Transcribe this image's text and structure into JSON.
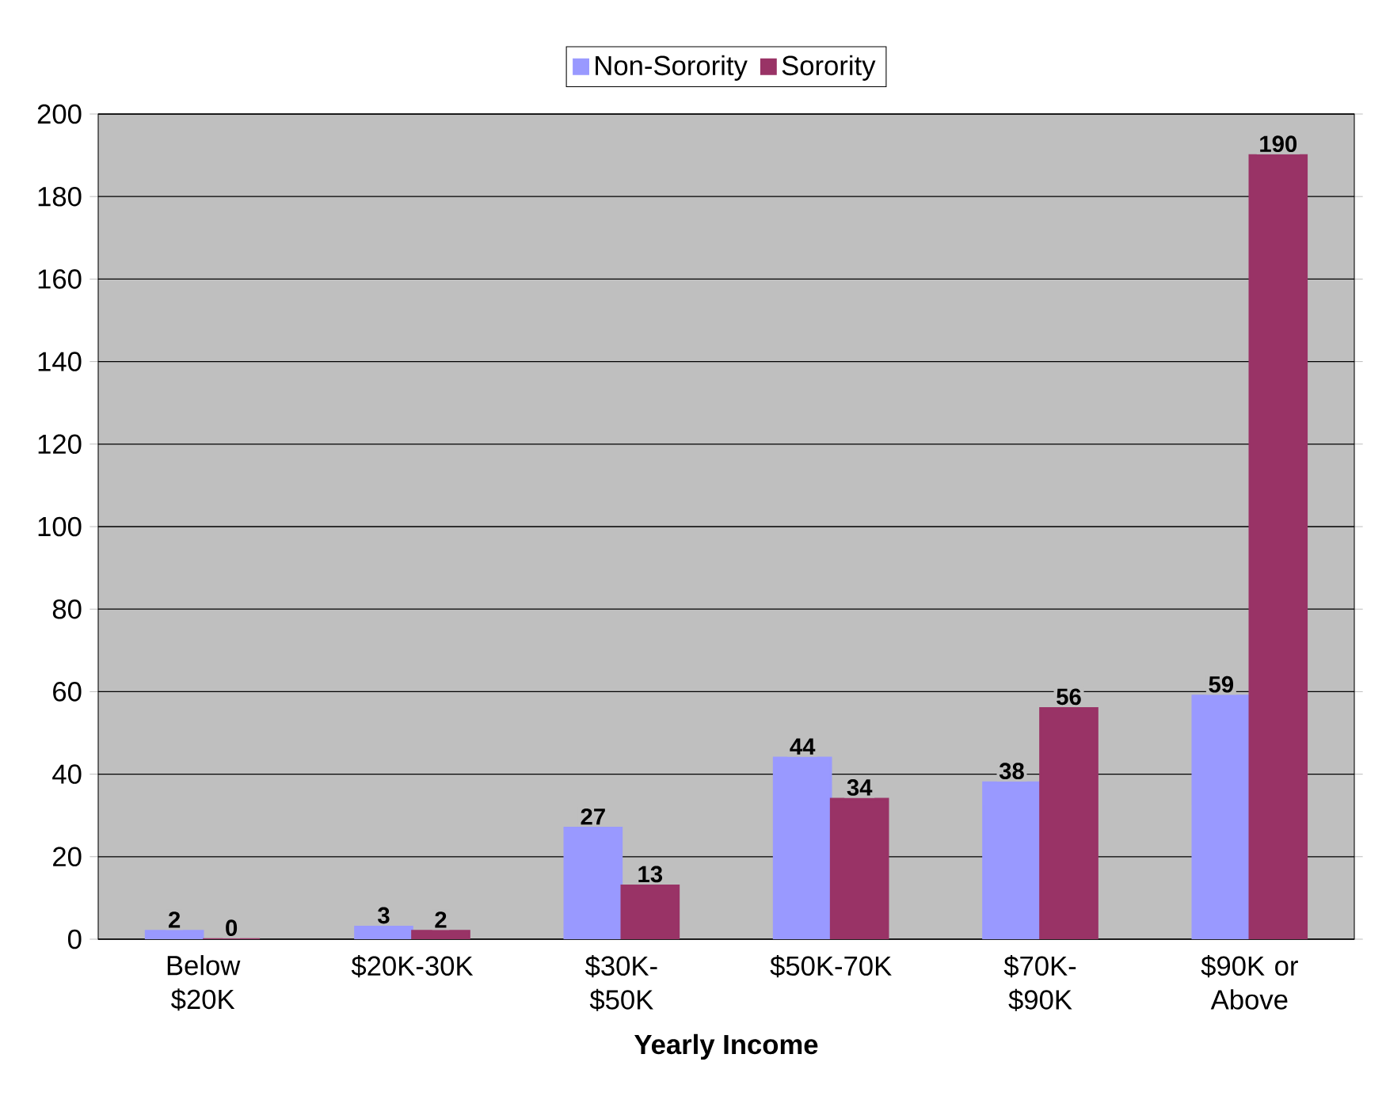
{
  "chart_data": {
    "type": "bar",
    "xlabel": "Yearly Income",
    "categories": [
      "Below $20K",
      "$20K-30K",
      "$30K-$50K",
      "$50K-70K",
      "$70K-$90K",
      "$90K or Above"
    ],
    "series": [
      {
        "name": "Non-Sorority",
        "color": "#9999ff",
        "values": [
          2,
          3,
          27,
          44,
          38,
          59
        ]
      },
      {
        "name": "Sorority",
        "color": "#993366",
        "values": [
          0,
          2,
          13,
          34,
          56,
          190
        ]
      }
    ],
    "ylim": [
      0,
      200
    ],
    "yticks": [
      0,
      20,
      40,
      60,
      80,
      100,
      120,
      140,
      160,
      180,
      200
    ],
    "grid": "y",
    "legend": "top",
    "data_labels": true
  }
}
